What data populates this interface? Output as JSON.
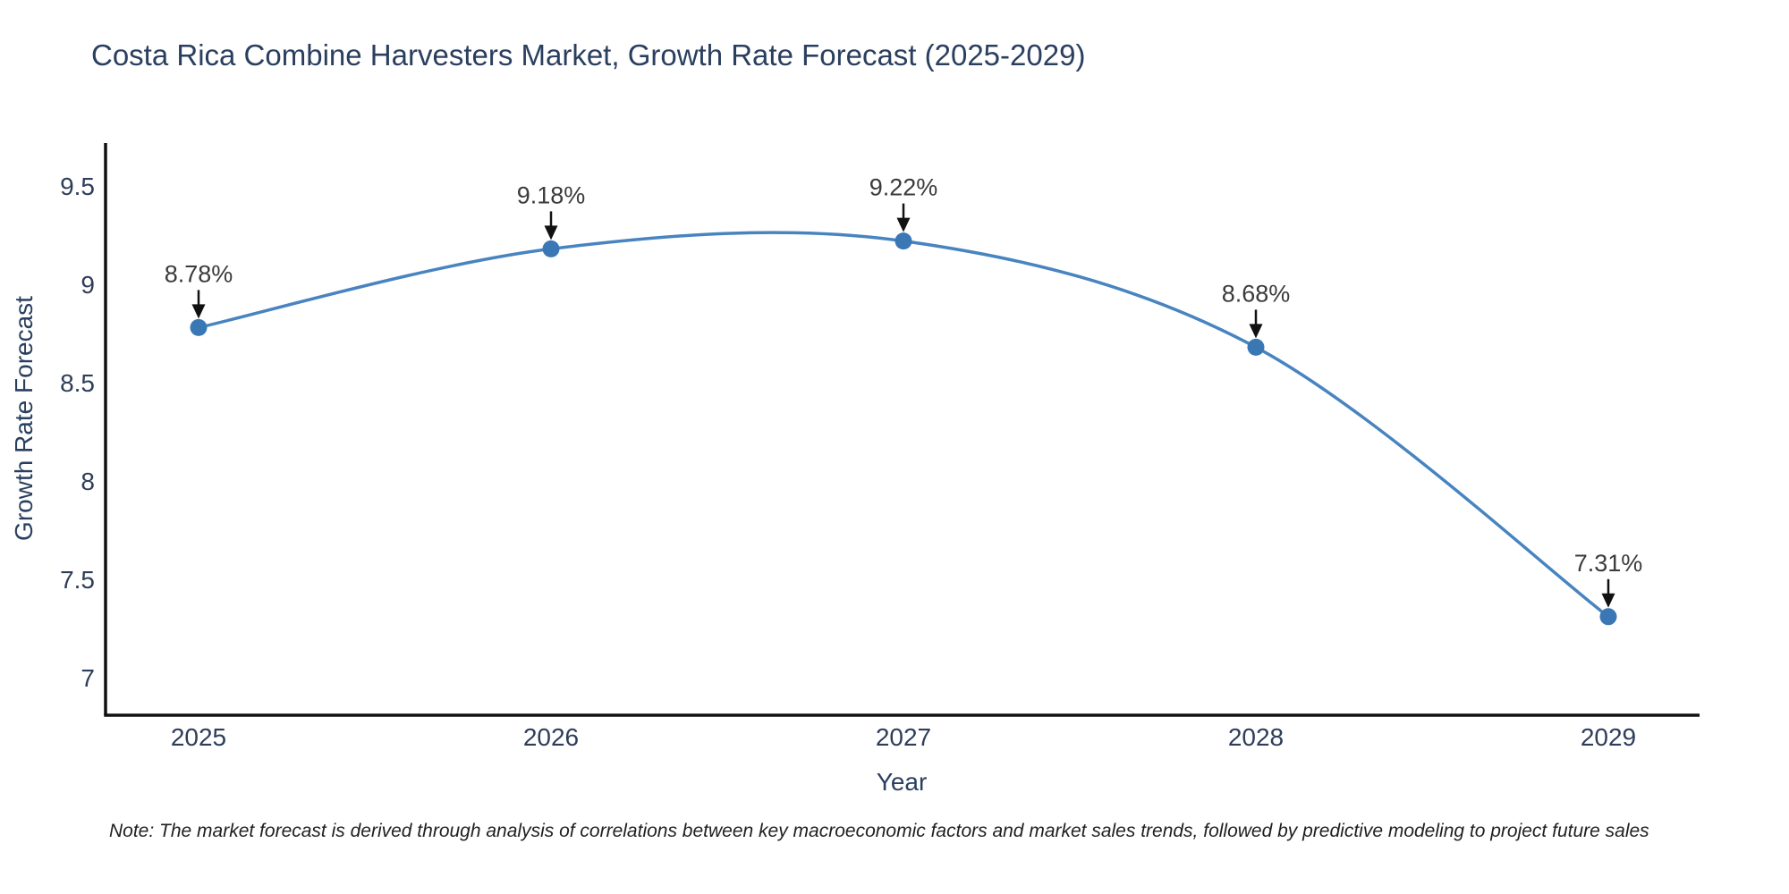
{
  "title": "Costa Rica Combine Harvesters Market, Growth Rate Forecast (2025-2029)",
  "note": "Note: The market forecast is derived through analysis of correlations between key macroeconomic factors and market sales trends, followed by predictive modeling to project future sales",
  "chart_data": {
    "type": "line",
    "title": "Costa Rica Combine Harvesters Market, Growth Rate Forecast (2025-2029)",
    "xlabel": "Year",
    "ylabel": "Growth Rate Forecast",
    "x": [
      2025,
      2026,
      2027,
      2028,
      2029
    ],
    "values": [
      8.78,
      9.18,
      9.22,
      8.68,
      7.31
    ],
    "point_labels": [
      "8.78%",
      "9.18%",
      "9.22%",
      "8.68%",
      "7.31%"
    ],
    "x_tick_labels": [
      "2025",
      "2026",
      "2027",
      "2028",
      "2029"
    ],
    "y_ticks": [
      7,
      7.5,
      8,
      8.5,
      9,
      9.5
    ],
    "y_tick_labels": [
      "7",
      "7.5",
      "8",
      "8.5",
      "9",
      "9.5"
    ],
    "ylim": [
      6.81,
      9.72
    ],
    "line_shape": "spline",
    "grid": "off",
    "legend": "none",
    "annotations_have_arrows": true,
    "colors": {
      "line": "#4884bf",
      "marker": "#3a78b5",
      "axis": "#111111",
      "title_text": "#2a3f5f",
      "tick_text": "#2e3d59",
      "annotation_text": "#3b3b3b",
      "arrow": "#111111",
      "background": "#ffffff"
    }
  }
}
